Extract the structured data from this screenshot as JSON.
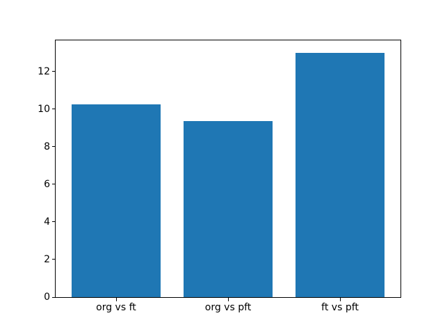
{
  "chart_data": {
    "type": "bar",
    "categories": [
      "org vs ft",
      "org vs pft",
      "ft vs pft"
    ],
    "values": [
      10.25,
      9.35,
      13.0
    ],
    "title": "",
    "xlabel": "",
    "ylabel": "",
    "ylim": [
      0,
      13.65
    ],
    "yticks": [
      0,
      2,
      4,
      6,
      8,
      10,
      12
    ],
    "bar_color": "#1f77b4",
    "spine_color": "#000000",
    "background_color": "#ffffff",
    "grid": false,
    "legend": null,
    "bar_width_fraction": 0.8
  }
}
